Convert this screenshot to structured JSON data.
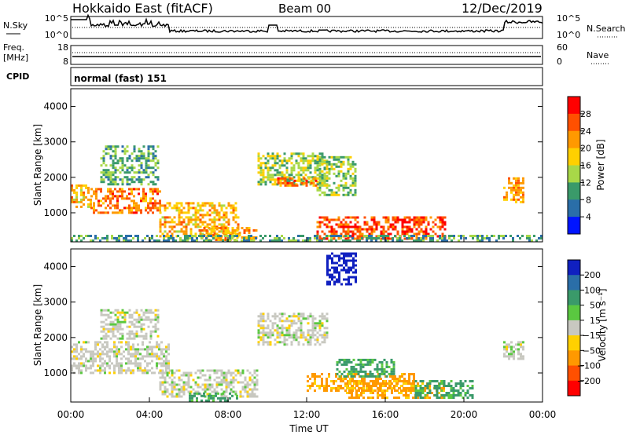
{
  "header": {
    "station": "Hokkaido East (fitACF)",
    "beam": "Beam 00",
    "date": "12/Dec/2019"
  },
  "sky_panel": {
    "left_label": "N.Sky",
    "left_ticks": [
      "10^5",
      "10^0"
    ],
    "right_label": "N.Search",
    "right_ticks": [
      "10^5",
      "10^0"
    ]
  },
  "freq_panel": {
    "left_label_1": "Freq.",
    "left_label_2": "[MHz]",
    "left_ticks": [
      "18",
      "8"
    ],
    "right_label": "Nave",
    "right_ticks": [
      "60",
      "0"
    ]
  },
  "cpid_panel": {
    "label": "CPID",
    "mode_text": "normal (fast) 151"
  },
  "power_panel": {
    "ylabel": "Slant Range [km]",
    "yticks": [
      "4000",
      "3000",
      "2000",
      "1000"
    ],
    "colorbar_label": "Power [dB]",
    "colorbar_ticks": [
      "28",
      "24",
      "20",
      "16",
      "12",
      "8",
      "4"
    ],
    "colorbar_colors": [
      "#ff0000",
      "#ff5000",
      "#ff9900",
      "#ffd000",
      "#a8d848",
      "#3a9a6a",
      "#2a6ea8",
      "#0014ff"
    ]
  },
  "velocity_panel": {
    "ylabel": "Slant Range [km]",
    "yticks": [
      "4000",
      "3000",
      "2000",
      "1000"
    ],
    "colorbar_label": "Velocity [m s⁻¹]",
    "colorbar_ticks": [
      "200",
      "100",
      "50",
      "15",
      "−15",
      "−50",
      "−100",
      "−200"
    ],
    "colorbar_colors": [
      "#1020c0",
      "#2a6ea8",
      "#3a9a6a",
      "#5ac840",
      "#c8c8c0",
      "#ffd000",
      "#ff9900",
      "#ff5000",
      "#ff0000"
    ]
  },
  "x_axis": {
    "label": "Time UT",
    "ticks": [
      "00:00",
      "04:00",
      "08:00",
      "12:00",
      "16:00",
      "20:00",
      "00:00"
    ]
  },
  "chart_data": [
    {
      "type": "heatmap",
      "title": "Power",
      "xlabel": "Time UT",
      "ylabel": "Slant Range [km]",
      "xlim": [
        0,
        24
      ],
      "ylim": [
        180,
        4500
      ],
      "colorbar": {
        "label": "Power [dB]",
        "range": [
          0,
          32
        ]
      },
      "regions": [
        {
          "t": [
            0.0,
            1.0
          ],
          "r": [
            1200,
            1800
          ],
          "level": 22
        },
        {
          "t": [
            1.0,
            4.5
          ],
          "r": [
            1000,
            1700
          ],
          "level": 26
        },
        {
          "t": [
            1.5,
            4.5
          ],
          "r": [
            1800,
            2900
          ],
          "level": 13
        },
        {
          "t": [
            4.5,
            8.5
          ],
          "r": [
            350,
            1300
          ],
          "level": 22
        },
        {
          "t": [
            6.5,
            9.5
          ],
          "r": [
            250,
            600
          ],
          "level": 24
        },
        {
          "t": [
            9.5,
            13.0
          ],
          "r": [
            1800,
            2700
          ],
          "level": 16
        },
        {
          "t": [
            10.5,
            12.5
          ],
          "r": [
            1800,
            2000
          ],
          "level": 26
        },
        {
          "t": [
            12.5,
            19.0
          ],
          "r": [
            300,
            900
          ],
          "level": 28
        },
        {
          "t": [
            12.5,
            14.5
          ],
          "r": [
            1500,
            2600
          ],
          "level": 15
        },
        {
          "t": [
            22.0,
            23.0
          ],
          "r": [
            1300,
            2000
          ],
          "level": 24
        },
        {
          "t": [
            0.0,
            24.0
          ],
          "r": [
            200,
            380
          ],
          "level": 12
        }
      ]
    },
    {
      "type": "heatmap",
      "title": "Velocity",
      "xlabel": "Time UT",
      "ylabel": "Slant Range [km]",
      "xlim": [
        0,
        24
      ],
      "ylim": [
        180,
        4500
      ],
      "colorbar": {
        "label": "Velocity [m s⁻¹]",
        "range": [
          -250,
          250
        ]
      },
      "regions": [
        {
          "t": [
            0.0,
            5.0
          ],
          "r": [
            1000,
            1900
          ],
          "v": 0
        },
        {
          "t": [
            1.5,
            4.5
          ],
          "r": [
            2000,
            2800
          ],
          "v": 0
        },
        {
          "t": [
            4.5,
            9.5
          ],
          "r": [
            350,
            1100
          ],
          "v": 0
        },
        {
          "t": [
            9.5,
            13.0
          ],
          "r": [
            1800,
            2700
          ],
          "v": 0
        },
        {
          "t": [
            6.0,
            8.5
          ],
          "r": [
            200,
            450
          ],
          "v": 40
        },
        {
          "t": [
            12.0,
            17.5
          ],
          "r": [
            500,
            1000
          ],
          "v": -60
        },
        {
          "t": [
            14.0,
            19.0
          ],
          "r": [
            300,
            800
          ],
          "v": -60
        },
        {
          "t": [
            13.5,
            16.5
          ],
          "r": [
            900,
            1400
          ],
          "v": 40
        },
        {
          "t": [
            17.5,
            20.5
          ],
          "r": [
            300,
            800
          ],
          "v": 40
        },
        {
          "t": [
            22.0,
            23.0
          ],
          "r": [
            1400,
            1900
          ],
          "v": 0
        },
        {
          "t": [
            13.0,
            14.5
          ],
          "r": [
            3500,
            4400
          ],
          "v": 200
        }
      ]
    }
  ]
}
